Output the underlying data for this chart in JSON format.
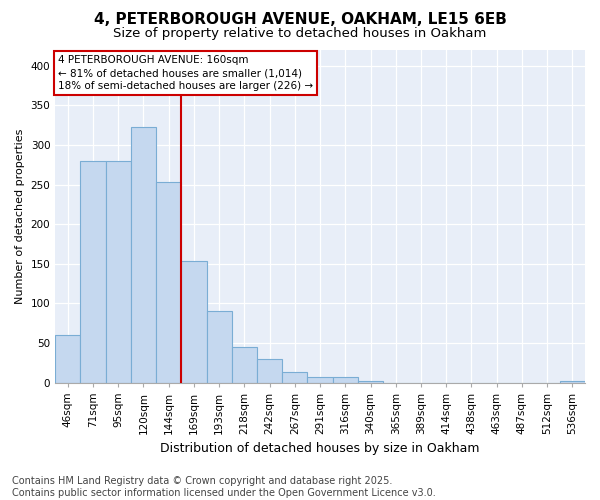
{
  "title1": "4, PETERBOROUGH AVENUE, OAKHAM, LE15 6EB",
  "title2": "Size of property relative to detached houses in Oakham",
  "xlabel": "Distribution of detached houses by size in Oakham",
  "ylabel": "Number of detached properties",
  "categories": [
    "46sqm",
    "71sqm",
    "95sqm",
    "120sqm",
    "144sqm",
    "169sqm",
    "193sqm",
    "218sqm",
    "242sqm",
    "267sqm",
    "291sqm",
    "316sqm",
    "340sqm",
    "365sqm",
    "389sqm",
    "414sqm",
    "438sqm",
    "463sqm",
    "487sqm",
    "512sqm",
    "536sqm"
  ],
  "values": [
    60,
    280,
    280,
    323,
    253,
    153,
    90,
    45,
    30,
    13,
    7,
    7,
    2,
    0,
    0,
    0,
    0,
    0,
    0,
    0,
    2
  ],
  "bar_color": "#c5d8ef",
  "bar_edge_color": "#7aadd4",
  "bar_linewidth": 0.8,
  "red_line_index": 5,
  "annotation_title": "4 PETERBOROUGH AVENUE: 160sqm",
  "annotation_line1": "← 81% of detached houses are smaller (1,014)",
  "annotation_line2": "18% of semi-detached houses are larger (226) →",
  "annotation_box_facecolor": "#ffffff",
  "annotation_box_edgecolor": "#cc0000",
  "footnote1": "Contains HM Land Registry data © Crown copyright and database right 2025.",
  "footnote2": "Contains public sector information licensed under the Open Government Licence v3.0.",
  "ylim": [
    0,
    420
  ],
  "yticks": [
    0,
    50,
    100,
    150,
    200,
    250,
    300,
    350,
    400
  ],
  "fig_facecolor": "#ffffff",
  "plot_facecolor": "#e8eef8",
  "grid_color": "#ffffff",
  "title1_fontsize": 11,
  "title2_fontsize": 9.5,
  "xlabel_fontsize": 9,
  "ylabel_fontsize": 8,
  "tick_fontsize": 7.5,
  "annot_fontsize": 7.5,
  "footnote_fontsize": 7
}
